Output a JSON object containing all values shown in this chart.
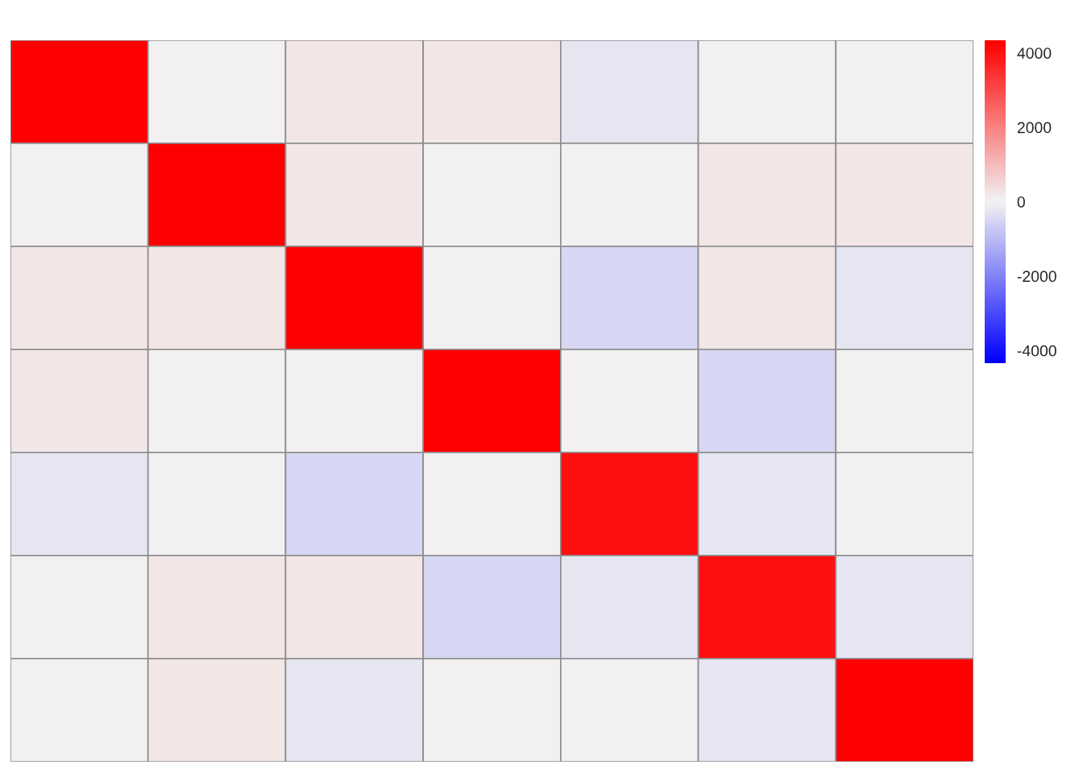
{
  "chart_data": {
    "type": "heatmap",
    "categories": [
      null,
      null,
      null,
      null,
      null,
      null,
      null
    ],
    "y_categories": [
      null,
      null,
      null,
      null,
      null,
      null,
      null
    ],
    "cells": [
      [
        4300,
        0,
        250,
        250,
        -250,
        0,
        0
      ],
      [
        0,
        4300,
        250,
        0,
        0,
        250,
        250
      ],
      [
        250,
        250,
        4300,
        0,
        -500,
        250,
        -250
      ],
      [
        250,
        0,
        0,
        4300,
        0,
        -500,
        0
      ],
      [
        -250,
        0,
        -500,
        0,
        4000,
        -250,
        0
      ],
      [
        0,
        250,
        250,
        -500,
        -250,
        4000,
        -250
      ],
      [
        0,
        250,
        -250,
        0,
        0,
        -250,
        4300
      ]
    ],
    "clim": [
      -4340,
      4340
    ],
    "cticks": [
      -4000,
      -2000,
      0,
      2000,
      4000
    ]
  }
}
